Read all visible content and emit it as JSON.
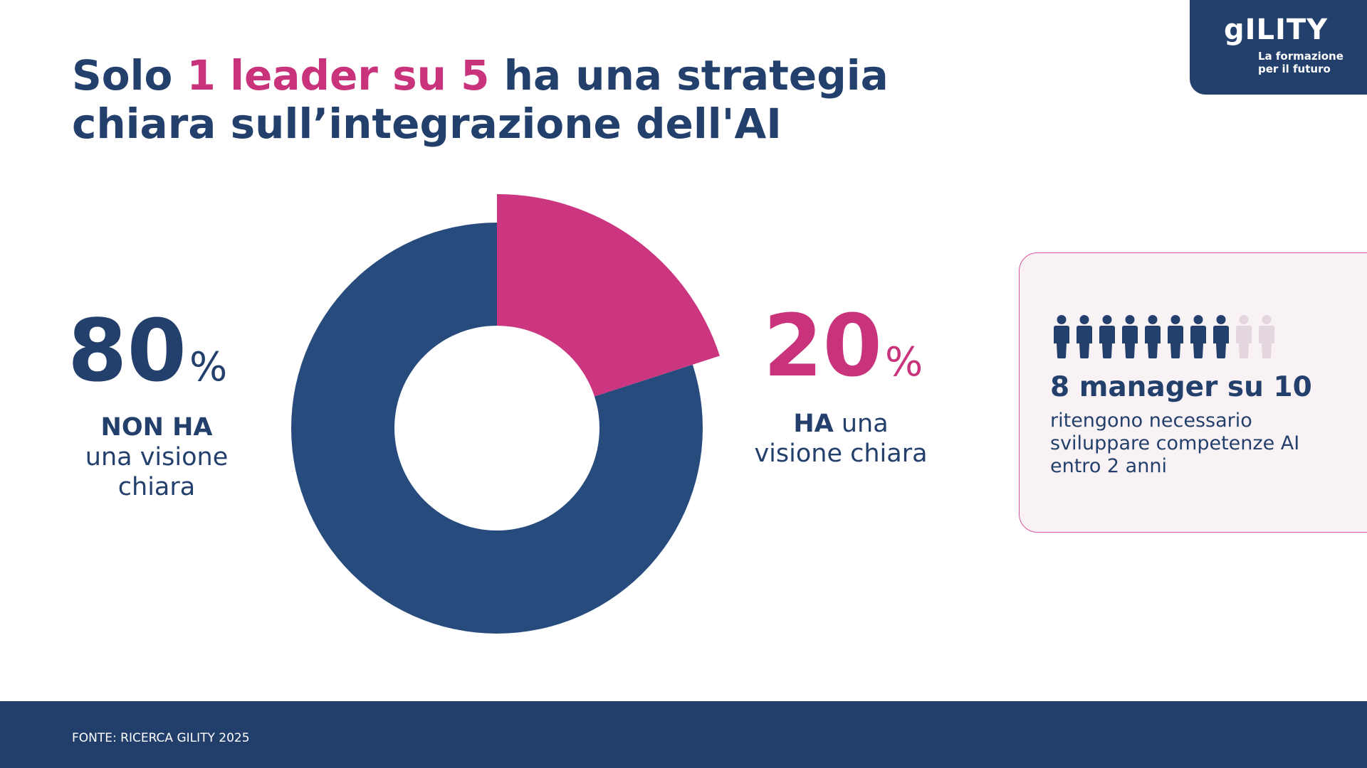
{
  "title": {
    "part1": "Solo ",
    "highlight": "1 leader su 5",
    "part2": " ha una strategia",
    "line2": "chiara sull’integrazione dell'AI"
  },
  "logo": {
    "wordmark": "gILITY",
    "tagline_1": "La formazione",
    "tagline_2": "per il futuro"
  },
  "chart_data": {
    "type": "pie",
    "donut": true,
    "categories": [
      "HA una visione chiara",
      "NON HA una visione chiara"
    ],
    "values": [
      20,
      80
    ],
    "colors": [
      "#cc3580",
      "#284b7e"
    ],
    "exploded": [
      "HA una visione chiara"
    ]
  },
  "left_stat": {
    "value": "80",
    "unit": "%",
    "label_bold": "NON HA",
    "label_line2": "una visione",
    "label_line3": "chiara"
  },
  "right_stat": {
    "value": "20",
    "unit": "%",
    "label_bold": "HA",
    "label_rest": " una",
    "label_line2": "visione chiara"
  },
  "card": {
    "icons_filled": 8,
    "icons_total": 10,
    "icon": "person-icon",
    "headline": "8 manager su 10",
    "line1": "ritengono necessario",
    "line2": "sviluppare competenze AI",
    "line3": "entro 2 anni"
  },
  "footer": {
    "source": "FONTE: RICERCA GILITY 2025"
  },
  "colors": {
    "navy": "#233f6b",
    "pink": "#c9337c",
    "donut_blue": "#284b7e",
    "card_bg": "#f9f2f5",
    "icon_empty": "#e3d6df"
  }
}
